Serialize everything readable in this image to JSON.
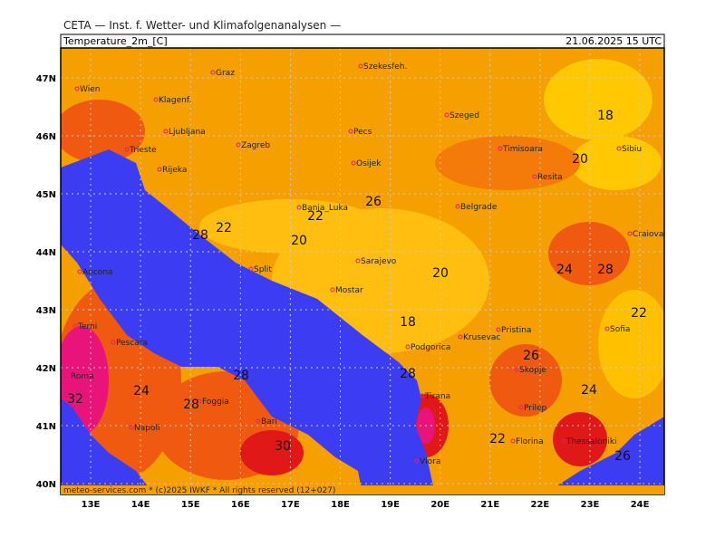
{
  "header": "CETA — Inst. f. Wetter- und Klimafolgenanalysen —",
  "map": {
    "title": "Temperature_2m_[C]",
    "valid": "21.06.2025 15 UTC",
    "lat_labels": [
      "47N",
      "46N",
      "45N",
      "44N",
      "43N",
      "42N",
      "41N",
      "40N"
    ],
    "lon_labels": [
      "13E",
      "14E",
      "15E",
      "16E",
      "17E",
      "18E",
      "19E",
      "20E",
      "21E",
      "22E",
      "23E",
      "24E"
    ],
    "cities": [
      "Wien",
      "Graz",
      "Szekesfeh.",
      "Klagenf.",
      "Szeged",
      "Pecs",
      "Ljubljana",
      "Zagreb",
      "Timisoara",
      "Sibiu",
      "Trieste",
      "Osijek",
      "Rijeka",
      "Resita",
      "Banja_Luka",
      "Belgrade",
      "Craiova",
      "Sarajevo",
      "Ancona",
      "Split",
      "Mostar",
      "Terni",
      "Pristina",
      "Sofia",
      "Krusevac",
      "Pescara",
      "Podgorica",
      "Roma",
      "Skopje",
      "Foggia",
      "Tirana",
      "Prilep",
      "Bari",
      "Napoli",
      "Florina",
      "Thessaloniki",
      "Vlora"
    ],
    "contour_labels": [
      18,
      20,
      26,
      22,
      22,
      28,
      20,
      24,
      28,
      20,
      22,
      18,
      26,
      28,
      28,
      24,
      24,
      28,
      22,
      30,
      26,
      32
    ],
    "footer": "meteo-services.com * (c)2025 IWKF * All rights reserved (12+027)"
  }
}
